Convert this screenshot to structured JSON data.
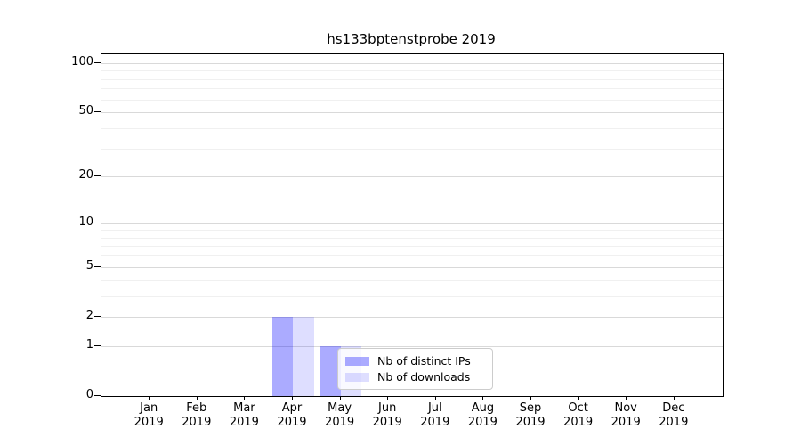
{
  "chart_data": {
    "type": "bar",
    "title": "hs133bptenstprobe 2019",
    "x_year": "2019",
    "categories": [
      "Jan",
      "Feb",
      "Mar",
      "Apr",
      "May",
      "Jun",
      "Jul",
      "Aug",
      "Sep",
      "Oct",
      "Nov",
      "Dec"
    ],
    "series": [
      {
        "name": "Nb of distinct IPs",
        "color": "rgba(0,0,255,0.33)",
        "values": [
          0,
          0,
          0,
          2,
          1,
          0,
          0,
          0,
          0,
          0,
          0,
          0
        ]
      },
      {
        "name": "Nb of downloads",
        "color": "rgba(0,0,255,0.13)",
        "values": [
          0,
          0,
          0,
          2,
          1,
          0,
          0,
          0,
          0,
          0,
          0,
          0
        ]
      }
    ],
    "y_axis": {
      "scale": "log1p",
      "major_ticks": [
        100,
        50,
        20,
        10,
        5,
        2,
        1,
        0
      ],
      "minor_ticks": [
        3,
        4,
        6,
        7,
        8,
        9,
        30,
        40,
        60,
        70,
        80,
        90
      ],
      "max": 113,
      "min": 0
    },
    "xlabel": "",
    "ylabel": "",
    "grid": {
      "on": true,
      "major_color": "#d9d9d9",
      "minor_color": "#f0f0f0"
    },
    "legend": {
      "position": "lower-center",
      "background": "rgba(255,255,255,0.8)",
      "border_color": "#cccccc"
    },
    "frame_color": "#000000"
  }
}
